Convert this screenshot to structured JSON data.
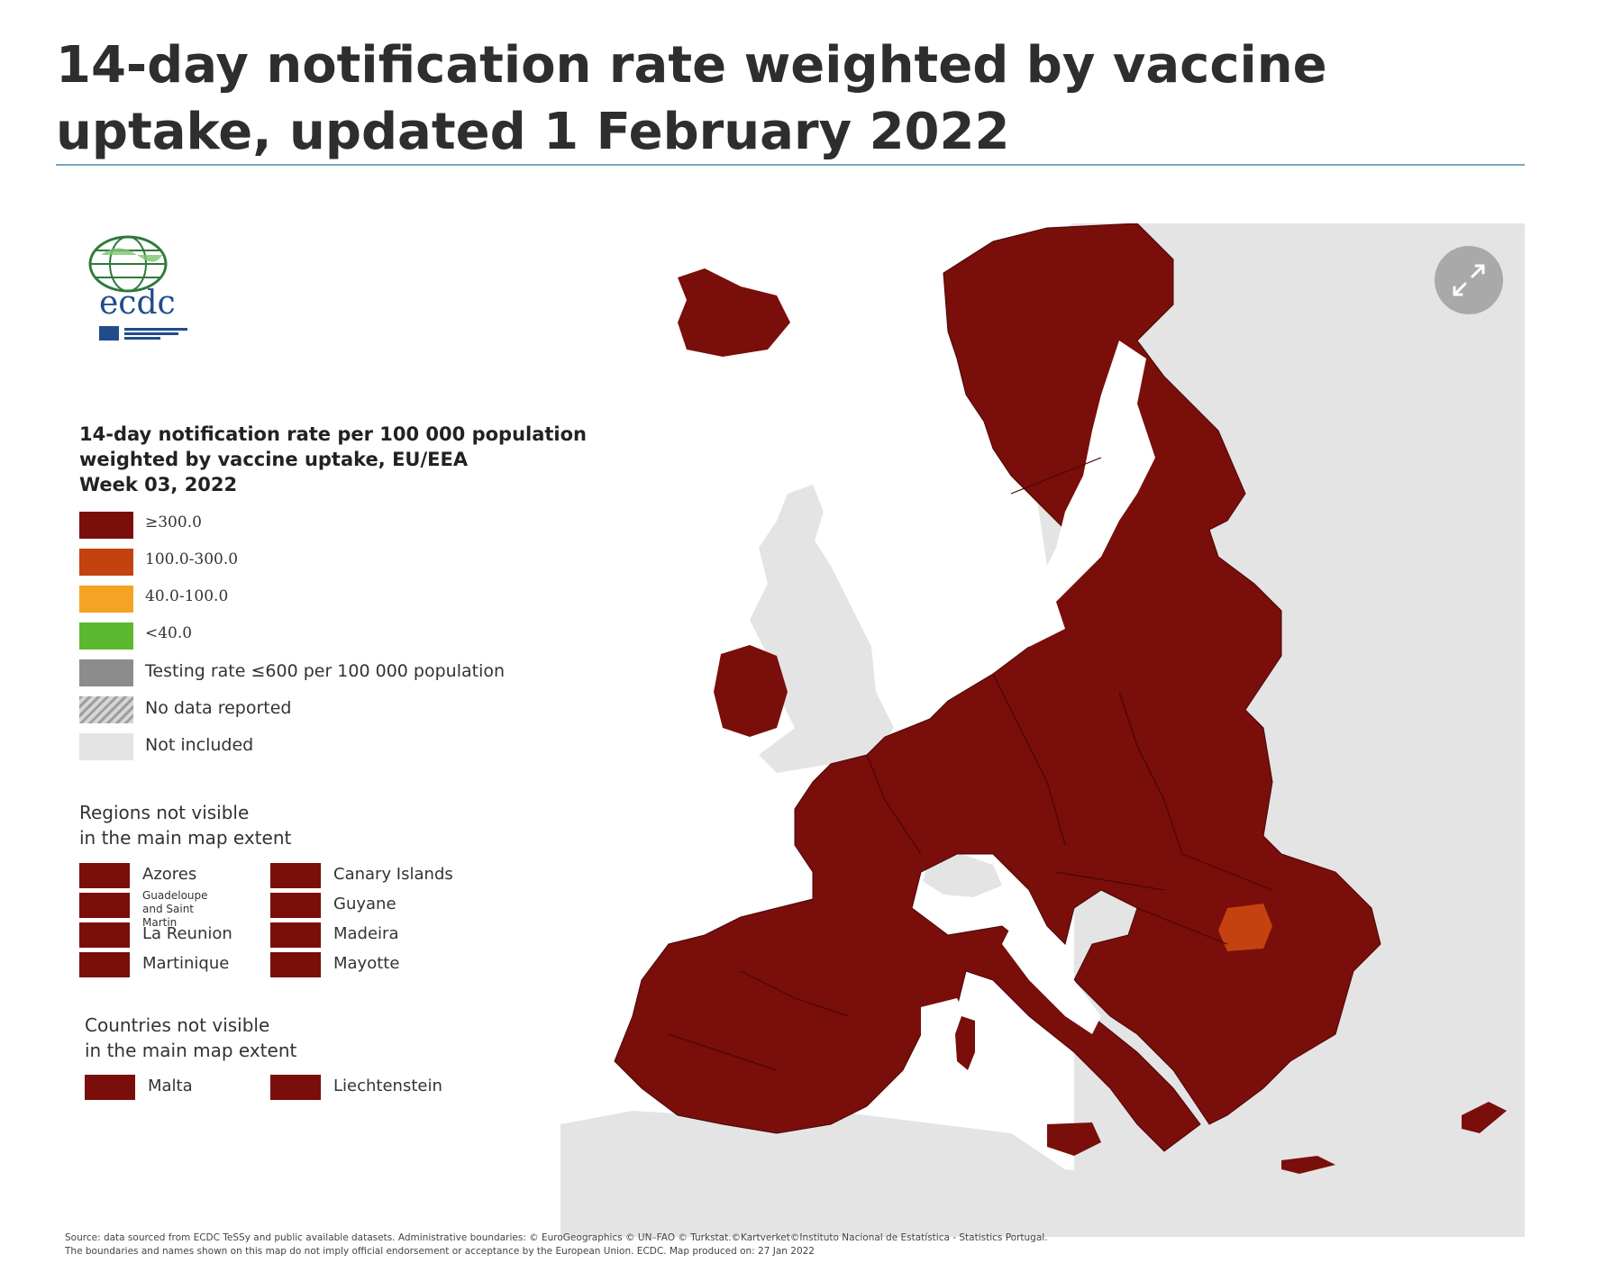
{
  "page": {
    "title": "14-day notification rate weighted by vaccine uptake, updated 1 February 2022"
  },
  "map": {
    "logo_text": "ecdc",
    "expand_icon": "expand-arrows-icon",
    "colors": {
      "very_high": "#7a0e0b",
      "high": "#c4420f",
      "medium": "#f4a324",
      "low": "#5cb82e",
      "low_testing": "#8c8c8c",
      "not_included": "#e4e4e4",
      "sea": "#ffffff",
      "border": "#4a0606"
    },
    "legend": {
      "title": "14-day notification rate per 100 000 population\nweighted by vaccine uptake, EU/EEA\nWeek 03, 2022",
      "items": [
        {
          "label": "≥300.0",
          "color": "#7a0e0b",
          "style": "solid"
        },
        {
          "label": "100.0-300.0",
          "color": "#c4420f",
          "style": "solid"
        },
        {
          "label": "40.0-100.0",
          "color": "#f4a324",
          "style": "solid"
        },
        {
          "label": "<40.0",
          "color": "#5cb82e",
          "style": "solid"
        },
        {
          "label": "Testing rate ≤600 per 100 000 population",
          "color": "#8c8c8c",
          "style": "solid"
        },
        {
          "label": "No data reported",
          "color": "#bdbdbd",
          "style": "hatched"
        },
        {
          "label": "Not included",
          "color": "#e4e4e4",
          "style": "solid"
        }
      ]
    },
    "regions_heading": "Regions not visible\nin the main map extent",
    "regions": [
      {
        "label": "Azores",
        "color": "#7a0e0b"
      },
      {
        "label": "Guadeloupe\nand Saint Martin",
        "color": "#7a0e0b"
      },
      {
        "label": "La Reunion",
        "color": "#7a0e0b"
      },
      {
        "label": "Martinique",
        "color": "#7a0e0b"
      },
      {
        "label": "Canary Islands",
        "color": "#7a0e0b"
      },
      {
        "label": "Guyane",
        "color": "#7a0e0b"
      },
      {
        "label": "Madeira",
        "color": "#7a0e0b"
      },
      {
        "label": "Mayotte",
        "color": "#7a0e0b"
      }
    ],
    "countries_heading": "Countries not visible\nin the main map extent",
    "countries": [
      {
        "label": "Malta",
        "color": "#7a0e0b"
      },
      {
        "label": "Liechtenstein",
        "color": "#7a0e0b"
      }
    ],
    "highlight_region_color": "#c4420f",
    "source_line1": "Source: data sourced from ECDC TeSSy and public available datasets. Administrative boundaries: © EuroGeographics © UN–FAO © Turkstat.©Kartverket©Instituto Nacional de Estatística - Statistics Portugal.",
    "source_line2": "The boundaries and names shown on this map do not imply official endorsement or acceptance by the European Union. ECDC. Map produced on: 27 Jan 2022"
  }
}
